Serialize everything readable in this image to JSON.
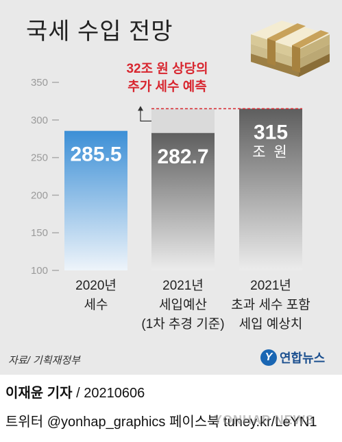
{
  "title": "국세 수입 전망",
  "annotation": [
    "32조 원 상당의",
    "추가 세수 예측"
  ],
  "source": "자료/ 기획재정부",
  "logo_text": "연합뉴스",
  "credit_author": "이재윤 기자",
  "credit_date": "/ 20210606",
  "social": "트위터 @yonhap_graphics  페이스북 tuney.kr/LeYN1",
  "watermark": "YONHAP NEWS",
  "colors": {
    "blue_top": "#3c8fd6",
    "blue_bottom": "#eef4fa",
    "gray_top": "#5e5e5e",
    "gray_bottom": "#ececec",
    "annotation": "#d8262f",
    "background": "#e9e9e9"
  },
  "icons": [
    "money-stack-icon",
    "yonhap-logo-icon"
  ],
  "chart_data": {
    "type": "bar",
    "title": "국세 수입 전망",
    "categories": [
      [
        "2020년",
        "세수"
      ],
      [
        "2021년",
        "세입예산",
        "(1차 추경 기준)"
      ],
      [
        "2021년",
        "초과 세수 포함",
        "세입 예상치"
      ]
    ],
    "values": [
      285.5,
      282.7,
      315
    ],
    "value_labels": [
      "285.5",
      "282.7",
      "315"
    ],
    "unit_label": "조 원",
    "yticks": [
      100,
      150,
      200,
      250,
      300,
      350
    ],
    "ylim": [
      100,
      350
    ],
    "grid": false
  }
}
